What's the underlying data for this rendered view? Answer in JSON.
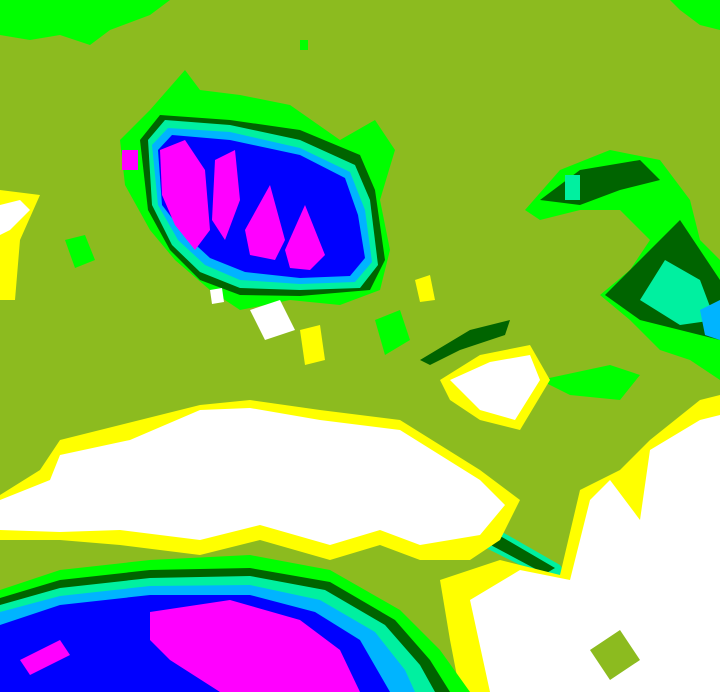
{
  "image": {
    "kind": "false-color satellite precipitation / cloud-top imagery",
    "palette": {
      "background": "#8cbb1f",
      "yellow": "#ffff00",
      "white": "#ffffff",
      "bright_green": "#00ff00",
      "dark_green": "#006400",
      "aqua": "#00f0a0",
      "cyan": "#00b4ff",
      "blue": "#0000ff",
      "magenta": "#ff00ff"
    }
  }
}
